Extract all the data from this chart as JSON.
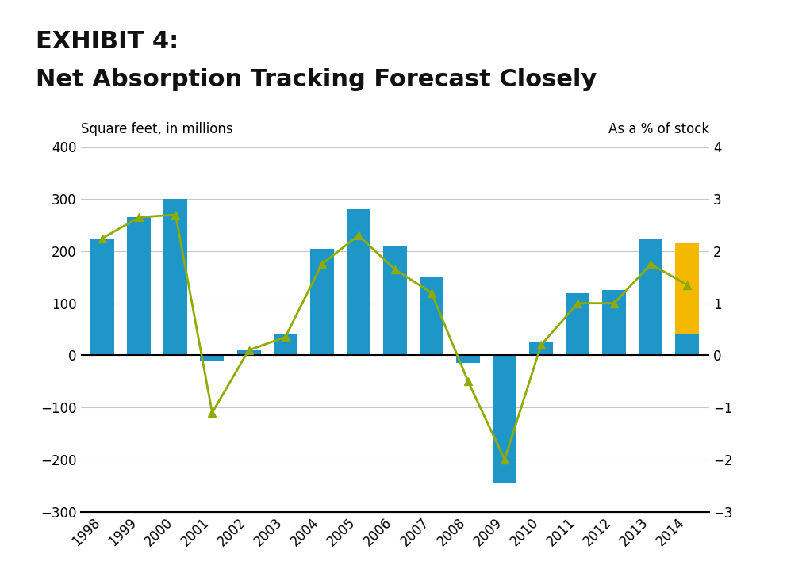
{
  "title_line1": "EXHIBIT 4:",
  "title_line2": "Net Absorption Tracking Forecast Closely",
  "years": [
    1998,
    1999,
    2000,
    2001,
    2002,
    2003,
    2004,
    2005,
    2006,
    2007,
    2008,
    2009,
    2010,
    2011,
    2012,
    2013,
    2014
  ],
  "actual_bars": [
    225,
    265,
    300,
    -10,
    10,
    40,
    205,
    280,
    210,
    150,
    -15,
    -245,
    25,
    120,
    125,
    225,
    40
  ],
  "forecast_bottom": [
    0,
    0,
    0,
    0,
    0,
    0,
    0,
    0,
    0,
    0,
    0,
    0,
    0,
    0,
    0,
    0,
    40
  ],
  "forecast_height": [
    0,
    0,
    0,
    0,
    0,
    0,
    0,
    0,
    0,
    0,
    0,
    0,
    0,
    0,
    0,
    0,
    175
  ],
  "pct_stock": [
    2.25,
    2.65,
    2.7,
    -1.1,
    0.1,
    0.35,
    1.75,
    2.3,
    1.65,
    1.2,
    -0.5,
    -2.0,
    0.2,
    1.0,
    1.0,
    1.75,
    1.35
  ],
  "actual_color": "#1f96c8",
  "forecast_color": "#f5b800",
  "pct_stock_color": "#8faa00",
  "bar_width": 0.65,
  "ylim": [
    -300,
    400
  ],
  "y2lim": [
    -3,
    4
  ],
  "yticks": [
    -300,
    -200,
    -100,
    0,
    100,
    200,
    300,
    400
  ],
  "y2ticks": [
    -3,
    -2,
    -1,
    0,
    1,
    2,
    3,
    4
  ],
  "ylabel_left": "Square feet, in millions",
  "ylabel_right": "As a % of stock",
  "bg_figure": "#ffffff",
  "bg_title": "#c0c0c0",
  "bg_plot": "#ffffff",
  "grid_color": "#c8c8c8",
  "title_fontsize": 22,
  "axis_label_fontsize": 12,
  "tick_fontsize": 12,
  "legend_fontsize": 12
}
